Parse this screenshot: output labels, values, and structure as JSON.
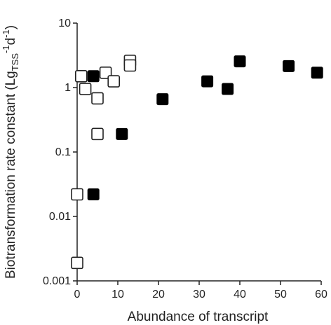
{
  "chart_data": {
    "type": "scatter",
    "xlabel": "Abundance of transcript",
    "ylabel": {
      "prefix": "Biotransformation rate constant (Lg",
      "subscript": "TSS",
      "superscript_1": "-1",
      "middle": "d",
      "superscript_2": "-1",
      "suffix": ")"
    },
    "xlim": [
      0,
      60
    ],
    "ylim": [
      0.001,
      10
    ],
    "yscale": "log",
    "xticks": [
      {
        "value": 0,
        "label": "0"
      },
      {
        "value": 10,
        "label": "10"
      },
      {
        "value": 20,
        "label": "20"
      },
      {
        "value": 30,
        "label": "30"
      },
      {
        "value": 40,
        "label": "40"
      },
      {
        "value": 50,
        "label": "50"
      },
      {
        "value": 60,
        "label": "60"
      }
    ],
    "yticks": [
      {
        "value": 10,
        "label": "10"
      },
      {
        "value": 1,
        "label": "1"
      },
      {
        "value": 0.1,
        "label": "0.1"
      },
      {
        "value": 0.01,
        "label": "0.01"
      },
      {
        "value": 0.001,
        "label": "0.001"
      }
    ],
    "grid": false,
    "legend": "none",
    "series": [
      {
        "marker": "open-square",
        "color": "#222222",
        "fill": "#ffffff",
        "points": [
          {
            "x": 0,
            "y": 0.0019
          },
          {
            "x": 0,
            "y": 0.022
          },
          {
            "x": 1,
            "y": 1.5
          },
          {
            "x": 2,
            "y": 0.95
          },
          {
            "x": 5,
            "y": 0.68
          },
          {
            "x": 5,
            "y": 0.19
          },
          {
            "x": 7,
            "y": 1.7
          },
          {
            "x": 9,
            "y": 1.25
          },
          {
            "x": 13,
            "y": 2.6
          },
          {
            "x": 13,
            "y": 2.2
          }
        ]
      },
      {
        "marker": "filled-square",
        "color": "#000000",
        "fill": "#000000",
        "points": [
          {
            "x": 4,
            "y": 1.5
          },
          {
            "x": 4,
            "y": 0.022
          },
          {
            "x": 11,
            "y": 0.19
          },
          {
            "x": 21,
            "y": 0.66
          },
          {
            "x": 32,
            "y": 1.25
          },
          {
            "x": 37,
            "y": 0.95
          },
          {
            "x": 40,
            "y": 2.55
          },
          {
            "x": 52,
            "y": 2.15
          },
          {
            "x": 59,
            "y": 1.7
          }
        ]
      }
    ]
  }
}
